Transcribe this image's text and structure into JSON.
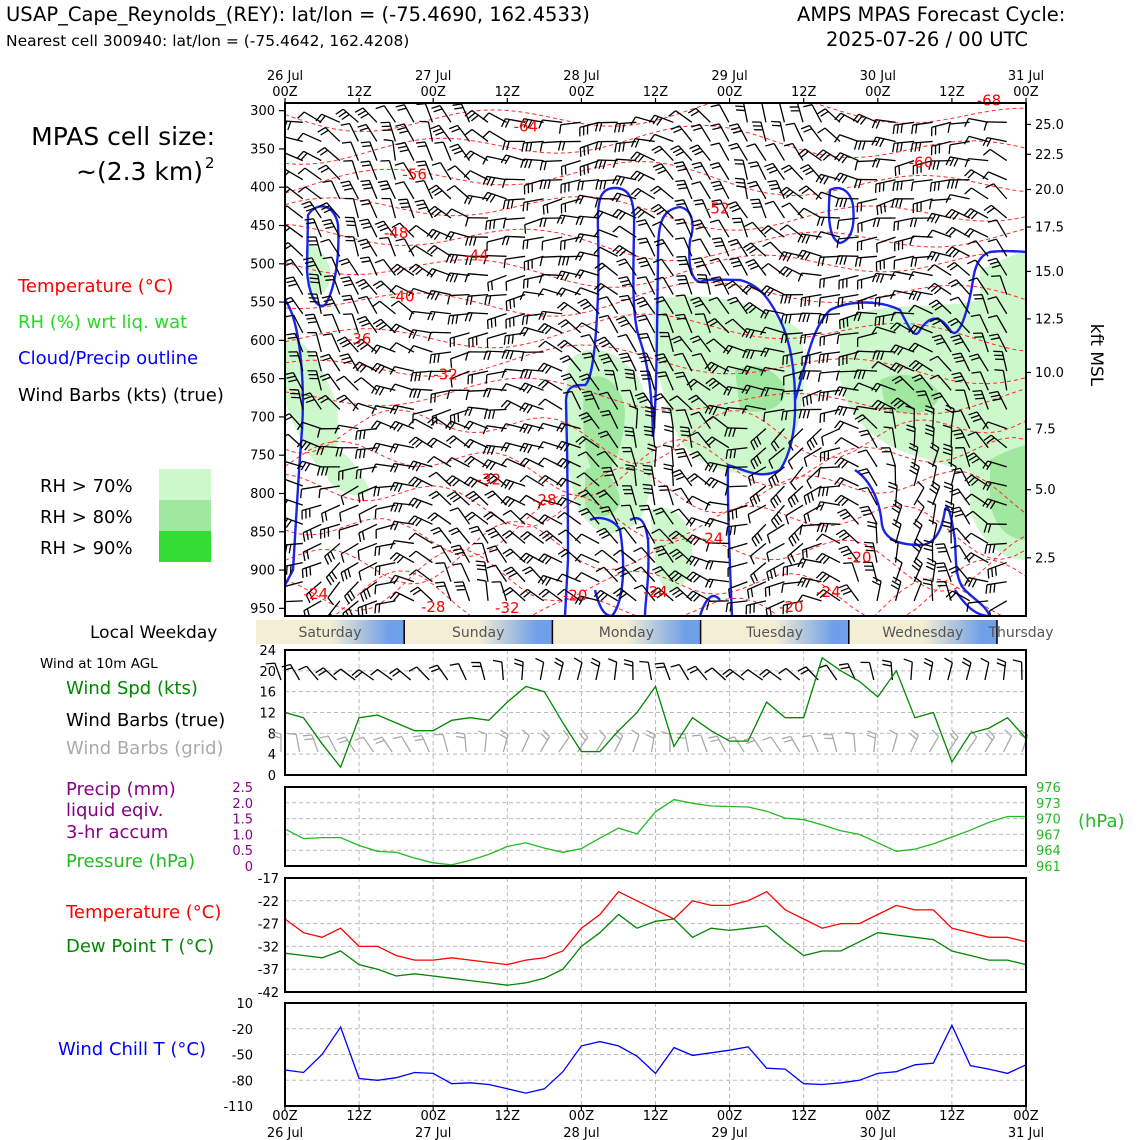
{
  "header": {
    "station_line": "USAP_Cape_Reynolds_(REY): lat/lon = (-75.4690, 162.4533)",
    "cell_line": "Nearest cell 300940: lat/lon = (-75.4642, 162.4208)",
    "cycle_title": "AMPS MPAS Forecast Cycle:",
    "cycle_time": "2025-07-26 / 00 UTC"
  },
  "legend": {
    "cell_size_label": "MPAS cell size:",
    "cell_size_value": "~(2.3 km)",
    "cell_size_exp": "2",
    "temperature": "Temperature (°C)",
    "rh": "RH (%) wrt liq. wat",
    "cloud": "Cloud/Precip outline",
    "wind_barbs": "Wind Barbs (kts) (true)",
    "rh_levels": [
      "RH > 70%",
      "RH > 80%",
      "RH > 90%"
    ],
    "local_weekday": "Local Weekday",
    "wind_10m": "Wind at 10m AGL",
    "wind_spd": "Wind Spd (kts)",
    "barbs_true": "Wind Barbs (true)",
    "barbs_grid": "Wind Barbs (grid)",
    "precip_1": "Precip (mm)",
    "precip_2": "liquid eqiv.",
    "precip_3": "3-hr accum",
    "pressure": "Pressure (hPa)",
    "pressure_unit": "(hPa)",
    "temp2": "Temperature (°C)",
    "dewpt": "Dew Point T (°C)",
    "windchill": "Wind Chill T (°C)",
    "kft_label": "kft MSL"
  },
  "colors": {
    "temp": "#ff0000",
    "rh_label": "#22dd22",
    "cloud": "#0000ff",
    "rh70": "#ccf8cc",
    "rh80": "#a0e8a0",
    "rh90": "#33dd33",
    "precip": "#880088",
    "pressure": "#22bb22",
    "speed": "#008800",
    "dew": "#008800",
    "windchill": "#0000ff",
    "grid_barb": "#aaaaaa"
  },
  "chart_data": [
    {
      "type": "heatmap",
      "name": "pressure-time cross section",
      "x_ticks_top": [
        {
          "t": 0,
          "lines": [
            "26 Jul",
            "00Z"
          ]
        },
        {
          "t": 12,
          "lines": [
            "",
            "12Z"
          ]
        },
        {
          "t": 24,
          "lines": [
            "27 Jul",
            "00Z"
          ]
        },
        {
          "t": 36,
          "lines": [
            "",
            "12Z"
          ]
        },
        {
          "t": 48,
          "lines": [
            "28 Jul",
            "00Z"
          ]
        },
        {
          "t": 60,
          "lines": [
            "",
            "12Z"
          ]
        },
        {
          "t": 72,
          "lines": [
            "29 Jul",
            "00Z"
          ]
        },
        {
          "t": 84,
          "lines": [
            "",
            "12Z"
          ]
        },
        {
          "t": 96,
          "lines": [
            "30 Jul",
            "00Z"
          ]
        },
        {
          "t": 108,
          "lines": [
            "",
            "12Z"
          ]
        },
        {
          "t": 120,
          "lines": [
            "31 Jul",
            "00Z"
          ]
        }
      ],
      "xlim": [
        0,
        120
      ],
      "ylim": [
        960,
        290
      ],
      "y_ticks": [
        300,
        350,
        400,
        450,
        500,
        550,
        600,
        650,
        700,
        750,
        800,
        850,
        900,
        950
      ],
      "kft_ticks": [
        {
          "label": "25.0",
          "p": 318
        },
        {
          "label": "22.5",
          "p": 357
        },
        {
          "label": "20.0",
          "p": 403
        },
        {
          "label": "17.5",
          "p": 452
        },
        {
          "label": "15.0",
          "p": 510
        },
        {
          "label": "12.5",
          "p": 572
        },
        {
          "label": "10.0",
          "p": 642
        },
        {
          "label": "7.5",
          "p": 716
        },
        {
          "label": "5.0",
          "p": 795
        },
        {
          "label": "2.5",
          "p": 884
        }
      ],
      "temp_labels": [
        {
          "text": "-68",
          "t": 114,
          "p": 293
        },
        {
          "text": "-64",
          "t": 39,
          "p": 327
        },
        {
          "text": "-60",
          "t": 103,
          "p": 374
        },
        {
          "text": "-56",
          "t": 21,
          "p": 390
        },
        {
          "text": "-52",
          "t": 70,
          "p": 434
        },
        {
          "text": "-48",
          "t": 18,
          "p": 466
        },
        {
          "text": "-44",
          "t": 31,
          "p": 496
        },
        {
          "text": "-40",
          "t": 19,
          "p": 549
        },
        {
          "text": "-36",
          "t": 12,
          "p": 605
        },
        {
          "text": "-32",
          "t": 26,
          "p": 651
        },
        {
          "text": "-32",
          "t": 33,
          "p": 788
        },
        {
          "text": "-28",
          "t": 42,
          "p": 815
        },
        {
          "text": "-24",
          "t": 69,
          "p": 865
        },
        {
          "text": "-20",
          "t": 93,
          "p": 890
        },
        {
          "text": "-24",
          "t": 5,
          "p": 938
        },
        {
          "text": "-28",
          "t": 24,
          "p": 955
        },
        {
          "text": "-32",
          "t": 36,
          "p": 956
        },
        {
          "text": "-20",
          "t": 47,
          "p": 940
        },
        {
          "text": "-24",
          "t": 60,
          "p": 935
        },
        {
          "text": "-24",
          "t": 88,
          "p": 935
        },
        {
          "text": "-20",
          "t": 82,
          "p": 955
        }
      ]
    },
    {
      "type": "line",
      "name": "10m wind speed",
      "series": [
        {
          "name": "Wind Spd (kts)",
          "x": [
            0,
            3,
            6,
            9,
            12,
            15,
            18,
            21,
            24,
            27,
            30,
            33,
            36,
            39,
            42,
            45,
            48,
            51,
            54,
            57,
            60,
            63,
            66,
            69,
            72,
            75,
            78,
            81,
            84,
            87,
            90,
            93,
            96,
            99,
            102,
            105,
            108,
            111,
            114,
            117,
            120
          ],
          "values": [
            12,
            11,
            6,
            1.5,
            11,
            11.5,
            10,
            8.5,
            8.5,
            10.5,
            11,
            10.5,
            14,
            17,
            16,
            10,
            4.5,
            4.5,
            8.5,
            12,
            17,
            5.5,
            11,
            8.5,
            6.5,
            6.5,
            14,
            11,
            11,
            22.5,
            20,
            18,
            15,
            20,
            11,
            12,
            2.5,
            8,
            9,
            11,
            7
          ]
        }
      ],
      "ylim": [
        0,
        24
      ],
      "y_ticks": [
        0,
        4,
        8,
        12,
        16,
        20,
        24
      ]
    },
    {
      "type": "line",
      "name": "precip and pressure",
      "series": [
        {
          "name": "Pressure (hPa)",
          "x": [
            0,
            3,
            6,
            9,
            12,
            15,
            18,
            21,
            24,
            27,
            30,
            33,
            36,
            39,
            42,
            45,
            48,
            51,
            54,
            57,
            60,
            63,
            66,
            69,
            72,
            75,
            78,
            81,
            84,
            87,
            90,
            93,
            96,
            99,
            102,
            105,
            108,
            111,
            114,
            117,
            120
          ],
          "values": [
            968,
            966.2,
            966.4,
            966.4,
            964.9,
            963.8,
            963.6,
            962.5,
            961.6,
            961.2,
            962.1,
            963.2,
            964.7,
            965.4,
            964.4,
            963.6,
            964.3,
            966.3,
            968.2,
            967.1,
            971.3,
            973.6,
            972.9,
            972.4,
            972.3,
            972.2,
            971.4,
            970.1,
            969.8,
            968.8,
            967.7,
            967.0,
            965.4,
            963.8,
            964.2,
            965.2,
            966.5,
            967.8,
            969.3,
            970.4,
            970.4
          ]
        }
      ],
      "precip_ylim": [
        0,
        2.5
      ],
      "precip_ticks": [
        "0",
        "0.5",
        "1.0",
        "1.5",
        "2.0",
        "2.5"
      ],
      "pressure_ylim": [
        961,
        976
      ],
      "pressure_ticks": [
        "961",
        "964",
        "967",
        "970",
        "973",
        "976"
      ]
    },
    {
      "type": "line",
      "name": "temperature and dew point",
      "series": [
        {
          "name": "Temperature (°C)",
          "x": [
            0,
            3,
            6,
            9,
            12,
            15,
            18,
            21,
            24,
            27,
            30,
            33,
            36,
            39,
            42,
            45,
            48,
            51,
            54,
            57,
            60,
            63,
            66,
            69,
            72,
            75,
            78,
            81,
            84,
            87,
            90,
            93,
            96,
            99,
            102,
            105,
            108,
            111,
            114,
            117,
            120
          ],
          "values": [
            -26,
            -29,
            -30,
            -28,
            -32,
            -32,
            -34,
            -35,
            -35,
            -34.5,
            -35,
            -35.5,
            -36,
            -35,
            -34.5,
            -33,
            -28,
            -25,
            -20,
            -22,
            -24,
            -26,
            -22,
            -23,
            -23,
            -22,
            -20,
            -24,
            -26,
            -28,
            -27,
            -27,
            -25,
            -23,
            -24,
            -24,
            -28,
            -29,
            -30,
            -30,
            -31
          ]
        },
        {
          "name": "Dew Point T (°C)",
          "x": [
            0,
            3,
            6,
            9,
            12,
            15,
            18,
            21,
            24,
            27,
            30,
            33,
            36,
            39,
            42,
            45,
            48,
            51,
            54,
            57,
            60,
            63,
            66,
            69,
            72,
            75,
            78,
            81,
            84,
            87,
            90,
            93,
            96,
            99,
            102,
            105,
            108,
            111,
            114,
            117,
            120
          ],
          "values": [
            -33.5,
            -34,
            -34.5,
            -33,
            -36,
            -37,
            -38.5,
            -38,
            -38.5,
            -39,
            -39.5,
            -40,
            -40.5,
            -40,
            -39,
            -37,
            -32,
            -29,
            -25,
            -28,
            -26.5,
            -26,
            -30,
            -28,
            -28.5,
            -28,
            -27.5,
            -31,
            -34,
            -33,
            -33,
            -31,
            -29,
            -29.5,
            -30,
            -30.5,
            -33,
            -34,
            -35,
            -35,
            -36
          ]
        }
      ],
      "ylim": [
        -42,
        -17
      ],
      "y_ticks": [
        -42,
        -37,
        -32,
        -27,
        -22,
        -17
      ]
    },
    {
      "type": "line",
      "name": "wind chill",
      "series": [
        {
          "name": "Wind Chill T (°C)",
          "x": [
            0,
            3,
            6,
            9,
            12,
            15,
            18,
            21,
            24,
            27,
            30,
            33,
            36,
            39,
            42,
            45,
            48,
            51,
            54,
            57,
            60,
            63,
            66,
            69,
            72,
            75,
            78,
            81,
            84,
            87,
            90,
            93,
            96,
            99,
            102,
            105,
            108,
            111,
            114,
            117,
            120
          ],
          "values": [
            -68,
            -71,
            -50,
            -18,
            -78,
            -80,
            -77,
            -71,
            -72,
            -84,
            -83,
            -85,
            -90,
            -95,
            -90,
            -70,
            -40,
            -35,
            -40,
            -52,
            -72,
            -42,
            -51,
            -48,
            -45,
            -41,
            -66,
            -67,
            -84,
            -85,
            -83,
            -80,
            -72,
            -70,
            -62,
            -60,
            -16,
            -63,
            -67,
            -72,
            -62
          ]
        }
      ],
      "ylim": [
        -110,
        10
      ],
      "y_ticks": [
        -110,
        -80,
        -50,
        -20,
        10
      ]
    }
  ],
  "weekdays": [
    "Saturday",
    "Sunday",
    "Monday",
    "Tuesday",
    "Wednesday",
    "Thursday"
  ],
  "bottom_ticks": [
    {
      "t": 0,
      "lines": [
        "00Z",
        "26 Jul"
      ]
    },
    {
      "t": 12,
      "lines": [
        "12Z",
        ""
      ]
    },
    {
      "t": 24,
      "lines": [
        "00Z",
        "27 Jul"
      ]
    },
    {
      "t": 36,
      "lines": [
        "12Z",
        ""
      ]
    },
    {
      "t": 48,
      "lines": [
        "00Z",
        "28 Jul"
      ]
    },
    {
      "t": 60,
      "lines": [
        "12Z",
        ""
      ]
    },
    {
      "t": 72,
      "lines": [
        "00Z",
        "29 Jul"
      ]
    },
    {
      "t": 84,
      "lines": [
        "12Z",
        ""
      ]
    },
    {
      "t": 96,
      "lines": [
        "00Z",
        "30 Jul"
      ]
    },
    {
      "t": 108,
      "lines": [
        "12Z",
        ""
      ]
    },
    {
      "t": 120,
      "lines": [
        "00Z",
        "31 Jul"
      ]
    }
  ]
}
